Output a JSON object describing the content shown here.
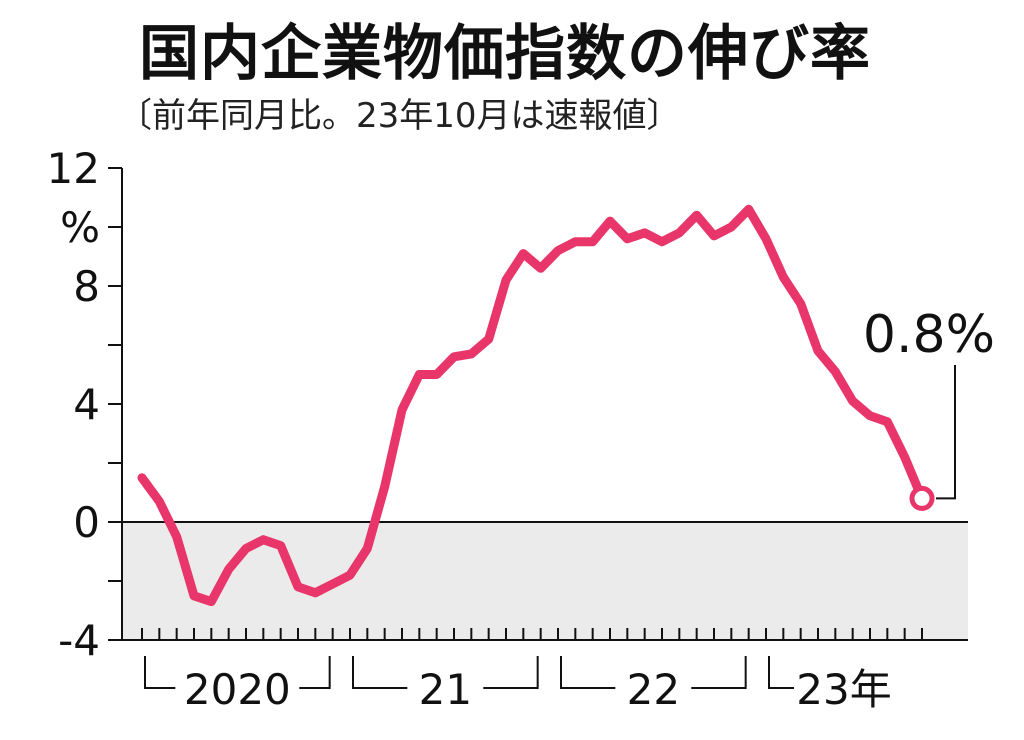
{
  "title": "国内企業物価指数の伸び率",
  "subtitle": "〔前年同月比。23年10月は速報値〕",
  "colors": {
    "line": "#e8366a",
    "negative_band": "#ebebeb",
    "axis": "#111111"
  },
  "chart_data": {
    "type": "line",
    "title": "国内企業物価指数の伸び率",
    "subtitle": "〔前年同月比。23年10月は速報値〕",
    "ylabel": "%",
    "ylim": [
      -4,
      12
    ],
    "y_ticks": [
      -4,
      -2,
      0,
      2,
      4,
      6,
      8,
      10,
      12
    ],
    "y_tick_labels": [
      {
        "value": 12,
        "text": "12"
      },
      {
        "value": 10,
        "text": "%"
      },
      {
        "value": 8,
        "text": "8"
      },
      {
        "value": 4,
        "text": "4"
      },
      {
        "value": 0,
        "text": "0"
      },
      {
        "value": -4,
        "text": "-4"
      }
    ],
    "year_groups": [
      {
        "label": "2020",
        "start": "2020-01",
        "end": "2020-12"
      },
      {
        "label": "21",
        "start": "2021-01",
        "end": "2021-12"
      },
      {
        "label": "22",
        "start": "2022-01",
        "end": "2022-12"
      },
      {
        "label": "23年",
        "start": "2023-01",
        "end": "2023-10"
      }
    ],
    "negative_band": [
      -4,
      0
    ],
    "grid": false,
    "x": [
      "2020-01",
      "2020-02",
      "2020-03",
      "2020-04",
      "2020-05",
      "2020-06",
      "2020-07",
      "2020-08",
      "2020-09",
      "2020-10",
      "2020-11",
      "2020-12",
      "2021-01",
      "2021-02",
      "2021-03",
      "2021-04",
      "2021-05",
      "2021-06",
      "2021-07",
      "2021-08",
      "2021-09",
      "2021-10",
      "2021-11",
      "2021-12",
      "2022-01",
      "2022-02",
      "2022-03",
      "2022-04",
      "2022-05",
      "2022-06",
      "2022-07",
      "2022-08",
      "2022-09",
      "2022-10",
      "2022-11",
      "2022-12",
      "2023-01",
      "2023-02",
      "2023-03",
      "2023-04",
      "2023-05",
      "2023-06",
      "2023-07",
      "2023-08",
      "2023-09",
      "2023-10"
    ],
    "series": [
      {
        "values": [
          1.5,
          0.7,
          -0.5,
          -2.5,
          -2.7,
          -1.6,
          -0.9,
          -0.6,
          -0.8,
          -2.2,
          -2.4,
          -2.1,
          -1.8,
          -0.9,
          1.2,
          3.8,
          5.0,
          5.0,
          5.6,
          5.7,
          6.2,
          8.2,
          9.1,
          8.6,
          9.2,
          9.5,
          9.5,
          10.2,
          9.6,
          9.8,
          9.5,
          9.8,
          10.4,
          9.7,
          10.0,
          10.6,
          9.6,
          8.3,
          7.4,
          5.8,
          5.1,
          4.1,
          3.6,
          3.4,
          2.2,
          0.8
        ]
      }
    ],
    "annotation": {
      "x": "2023-10",
      "y": 0.8,
      "text": "0.8%"
    }
  }
}
